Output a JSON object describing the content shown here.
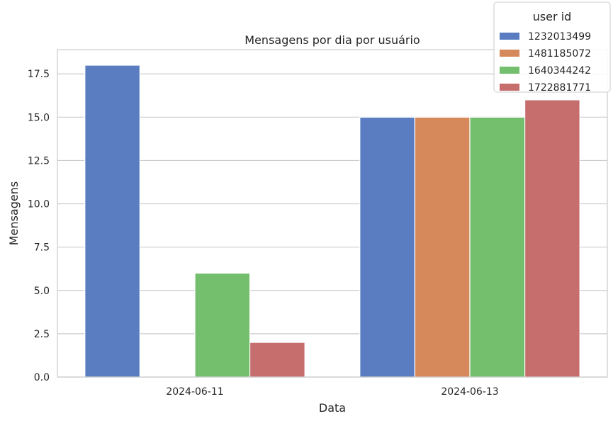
{
  "chart_data": {
    "type": "bar",
    "title": "Mensagens por dia por usuário",
    "xlabel": "Data",
    "ylabel": "Mensagens",
    "categories": [
      "2024-06-11",
      "2024-06-13"
    ],
    "series": [
      {
        "name": "1232013499",
        "color": "#5a7dc1",
        "values": [
          18,
          15
        ]
      },
      {
        "name": "1481185072",
        "color": "#d6895b",
        "values": [
          0,
          15
        ]
      },
      {
        "name": "1640344242",
        "color": "#74bf6e",
        "values": [
          6,
          15
        ]
      },
      {
        "name": "1722881771",
        "color": "#c66d6d",
        "values": [
          2,
          16
        ]
      }
    ],
    "ylim": [
      0,
      18.9
    ],
    "yticks": [
      "0.0",
      "2.5",
      "5.0",
      "7.5",
      "10.0",
      "12.5",
      "15.0",
      "17.5"
    ],
    "grid": true,
    "legend": {
      "title": "user id",
      "placement": "top-right"
    }
  }
}
